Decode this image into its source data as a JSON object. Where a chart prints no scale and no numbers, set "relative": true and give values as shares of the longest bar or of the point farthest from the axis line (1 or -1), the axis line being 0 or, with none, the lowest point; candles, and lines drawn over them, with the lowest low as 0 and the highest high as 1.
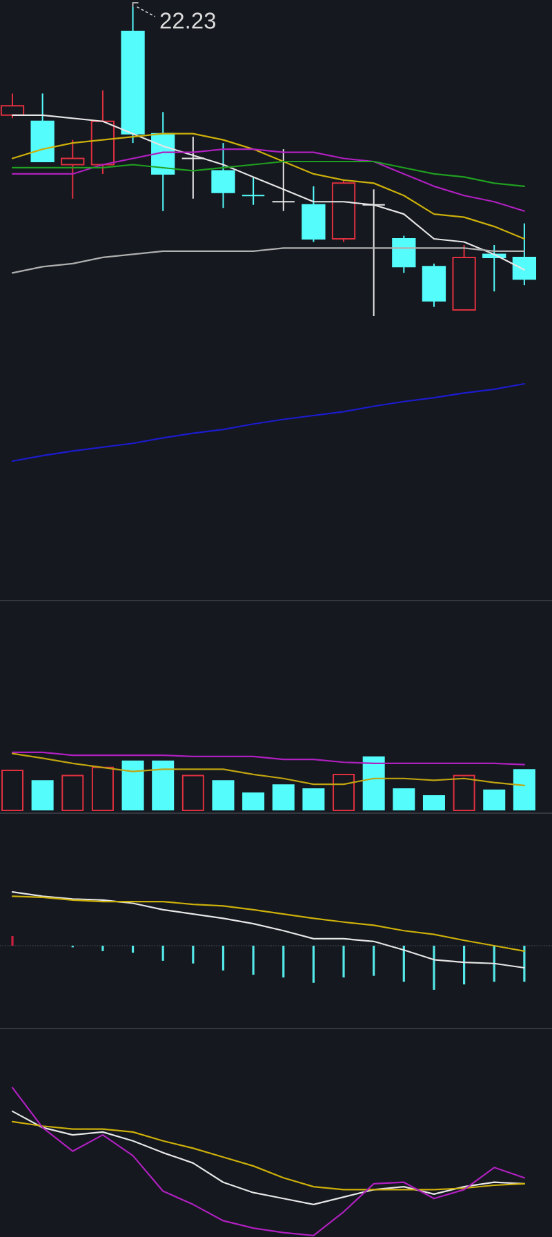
{
  "chart_data": [
    {
      "type": "candlestick",
      "relative": true,
      "categories": [
        null,
        null,
        null,
        null,
        null,
        null,
        null,
        null,
        null,
        null,
        null,
        null,
        null,
        null,
        null,
        null,
        null,
        null
      ],
      "ohlc": [
        [
          0.65,
          0.72,
          0.64,
          0.68
        ],
        [
          0.63,
          0.72,
          0.5,
          0.5
        ],
        [
          0.49,
          0.57,
          0.38,
          0.51
        ],
        [
          0.49,
          0.73,
          0.46,
          0.63
        ],
        [
          0.92,
          1.0,
          0.56,
          0.59
        ],
        [
          0.59,
          0.66,
          0.34,
          0.46
        ],
        [
          0.51,
          0.58,
          0.38,
          0.51
        ],
        [
          0.47,
          0.56,
          0.35,
          0.4
        ],
        [
          0.39,
          0.45,
          0.36,
          0.39
        ],
        [
          0.37,
          0.54,
          0.34,
          0.37
        ],
        [
          0.36,
          0.42,
          0.24,
          0.25
        ],
        [
          0.25,
          0.44,
          0.24,
          0.43
        ],
        [
          0.36,
          0.41,
          0.0,
          0.36
        ],
        [
          0.25,
          0.26,
          0.14,
          0.16
        ],
        [
          0.16,
          0.17,
          0.03,
          0.05
        ],
        [
          0.02,
          0.23,
          0.02,
          0.19
        ],
        [
          0.2,
          0.23,
          0.08,
          0.19
        ],
        [
          0.19,
          0.3,
          0.1,
          0.12
        ]
      ],
      "colors": [
        "#e0303f",
        "#54fcfc",
        "#e0303f",
        "#e0303f",
        "#54fcfc",
        "#54fcfc",
        "#e6e6e6",
        "#54fcfc",
        "#54fcfc",
        "#e6e6e6",
        "#54fcfc",
        "#e0303f",
        "#e6e6e6",
        "#54fcfc",
        "#54fcfc",
        "#e0303f",
        "#54fcfc",
        "#54fcfc"
      ],
      "series": [
        {
          "type": "line",
          "color": "#e6e6e6",
          "values": [
            0.65,
            0.65,
            0.64,
            0.63,
            0.59,
            0.55,
            0.52,
            0.49,
            0.45,
            0.41,
            0.37,
            0.37,
            0.36,
            0.33,
            0.25,
            0.24,
            0.2,
            0.15
          ]
        },
        {
          "type": "line",
          "color": "#cdb00a",
          "values": [
            0.51,
            0.54,
            0.56,
            0.57,
            0.58,
            0.59,
            0.59,
            0.57,
            0.54,
            0.5,
            0.46,
            0.44,
            0.43,
            0.39,
            0.33,
            0.32,
            0.29,
            0.25
          ]
        },
        {
          "type": "line",
          "color": "#b020c0",
          "values": [
            0.46,
            0.46,
            0.46,
            0.49,
            0.51,
            0.53,
            0.53,
            0.54,
            0.54,
            0.53,
            0.53,
            0.51,
            0.5,
            0.46,
            0.42,
            0.39,
            0.37,
            0.34
          ]
        },
        {
          "type": "line",
          "color": "#20a020",
          "values": [
            0.48,
            0.48,
            0.48,
            0.48,
            0.49,
            0.48,
            0.47,
            0.48,
            0.49,
            0.5,
            0.5,
            0.5,
            0.5,
            0.48,
            0.46,
            0.45,
            0.43,
            0.42
          ]
        },
        {
          "type": "line",
          "color": "#b0b0b0",
          "values": [
            0.14,
            0.16,
            0.17,
            0.19,
            0.2,
            0.21,
            0.21,
            0.21,
            0.21,
            0.22,
            0.22,
            0.22,
            0.22,
            0.22,
            0.22,
            0.22,
            0.21,
            0.21
          ]
        }
      ],
      "annotations": [
        "22.23"
      ]
    },
    {
      "type": "line",
      "relative": true,
      "categories": [
        null,
        null,
        null,
        null,
        null,
        null,
        null,
        null,
        null,
        null,
        null,
        null,
        null,
        null,
        null,
        null,
        null,
        null
      ],
      "series": [
        {
          "type": "line",
          "color": "#1c1ccf",
          "values": [
            0.0,
            0.07,
            0.13,
            0.18,
            0.23,
            0.3,
            0.36,
            0.41,
            0.48,
            0.54,
            0.59,
            0.64,
            0.71,
            0.77,
            0.82,
            0.88,
            0.93,
            1.0
          ]
        }
      ]
    },
    {
      "type": "bar",
      "relative": true,
      "categories": [
        null,
        null,
        null,
        null,
        null,
        null,
        null,
        null,
        null,
        null,
        null,
        null,
        null,
        null,
        null,
        null,
        null,
        null
      ],
      "series": [
        {
          "type": "bar",
          "values": [
            0.69,
            0.52,
            0.6,
            0.74,
            0.86,
            0.86,
            0.6,
            0.52,
            0.31,
            0.45,
            0.38,
            0.62,
            0.93,
            0.38,
            0.26,
            0.6,
            0.36,
            0.71
          ],
          "colors": [
            "#e0303f",
            "#54fcfc",
            "#e0303f",
            "#e0303f",
            "#54fcfc",
            "#54fcfc",
            "#e0303f",
            "#54fcfc",
            "#54fcfc",
            "#54fcfc",
            "#54fcfc",
            "#e0303f",
            "#54fcfc",
            "#54fcfc",
            "#54fcfc",
            "#e0303f",
            "#54fcfc",
            "#54fcfc"
          ]
        },
        {
          "type": "line",
          "color": "#b020c0",
          "values": [
            1.0,
            1.0,
            0.95,
            0.95,
            0.95,
            0.95,
            0.93,
            0.93,
            0.93,
            0.88,
            0.88,
            0.83,
            0.81,
            0.81,
            0.81,
            0.81,
            0.81,
            0.79
          ]
        },
        {
          "type": "line",
          "color": "#c0a410",
          "values": [
            0.98,
            0.9,
            0.81,
            0.74,
            0.67,
            0.71,
            0.71,
            0.71,
            0.62,
            0.55,
            0.45,
            0.45,
            0.55,
            0.55,
            0.52,
            0.55,
            0.48,
            0.43
          ]
        }
      ]
    },
    {
      "type": "bar",
      "relative": true,
      "categories": [
        null,
        null,
        null,
        null,
        null,
        null,
        null,
        null,
        null,
        null,
        null,
        null,
        null,
        null,
        null,
        null,
        null,
        null
      ],
      "ref_lines": [
        {
          "axis": "y",
          "value": 0,
          "color": "#3c404b",
          "line_style": "dotted"
        }
      ],
      "series": [
        {
          "type": "bar",
          "values": [
            0.18,
            null,
            -0.03,
            -0.1,
            -0.13,
            -0.28,
            -0.33,
            -0.46,
            -0.54,
            -0.59,
            -0.69,
            -0.59,
            -0.56,
            -0.67,
            -0.82,
            -0.72,
            -0.67,
            -0.67
          ],
          "colors": [
            "#d02040",
            "#54e8e8",
            "#54e8e8",
            "#54e8e8",
            "#54e8e8",
            "#54e8e8",
            "#54e8e8",
            "#54e8e8",
            "#54e8e8",
            "#54e8e8",
            "#54e8e8",
            "#54e8e8",
            "#54e8e8",
            "#54e8e8",
            "#54e8e8",
            "#54e8e8",
            "#54e8e8",
            "#54e8e8"
          ]
        },
        {
          "type": "line",
          "color": "#e6e6e6",
          "values": [
            1.0,
            0.92,
            0.87,
            0.85,
            0.79,
            0.67,
            0.59,
            0.51,
            0.41,
            0.28,
            0.13,
            0.13,
            0.08,
            -0.08,
            -0.26,
            -0.31,
            -0.33,
            -0.41
          ]
        },
        {
          "type": "line",
          "color": "#cdb00a",
          "values": [
            0.92,
            0.9,
            0.85,
            0.82,
            0.82,
            0.82,
            0.77,
            0.74,
            0.67,
            0.59,
            0.51,
            0.44,
            0.38,
            0.28,
            0.21,
            0.1,
            0.0,
            -0.1
          ]
        }
      ]
    },
    {
      "type": "line",
      "relative": true,
      "categories": [
        null,
        null,
        null,
        null,
        null,
        null,
        null,
        null,
        null,
        null,
        null,
        null,
        null,
        null,
        null,
        null,
        null,
        null
      ],
      "series": [
        {
          "type": "line",
          "color": "#e6e6e6",
          "values": [
            0.84,
            0.73,
            0.68,
            0.7,
            0.64,
            0.56,
            0.49,
            0.36,
            0.29,
            0.25,
            0.21,
            0.26,
            0.31,
            0.33,
            0.28,
            0.33,
            0.36,
            0.35
          ]
        },
        {
          "type": "line",
          "color": "#cdb00a",
          "values": [
            0.77,
            0.74,
            0.72,
            0.72,
            0.7,
            0.64,
            0.59,
            0.53,
            0.47,
            0.39,
            0.33,
            0.31,
            0.31,
            0.31,
            0.31,
            0.32,
            0.34,
            0.35
          ]
        },
        {
          "type": "line",
          "color": "#b020c0",
          "values": [
            1.0,
            0.73,
            0.57,
            0.68,
            0.54,
            0.3,
            0.21,
            0.1,
            0.05,
            0.02,
            0.0,
            0.16,
            0.35,
            0.36,
            0.25,
            0.31,
            0.46,
            0.39
          ]
        }
      ]
    }
  ]
}
